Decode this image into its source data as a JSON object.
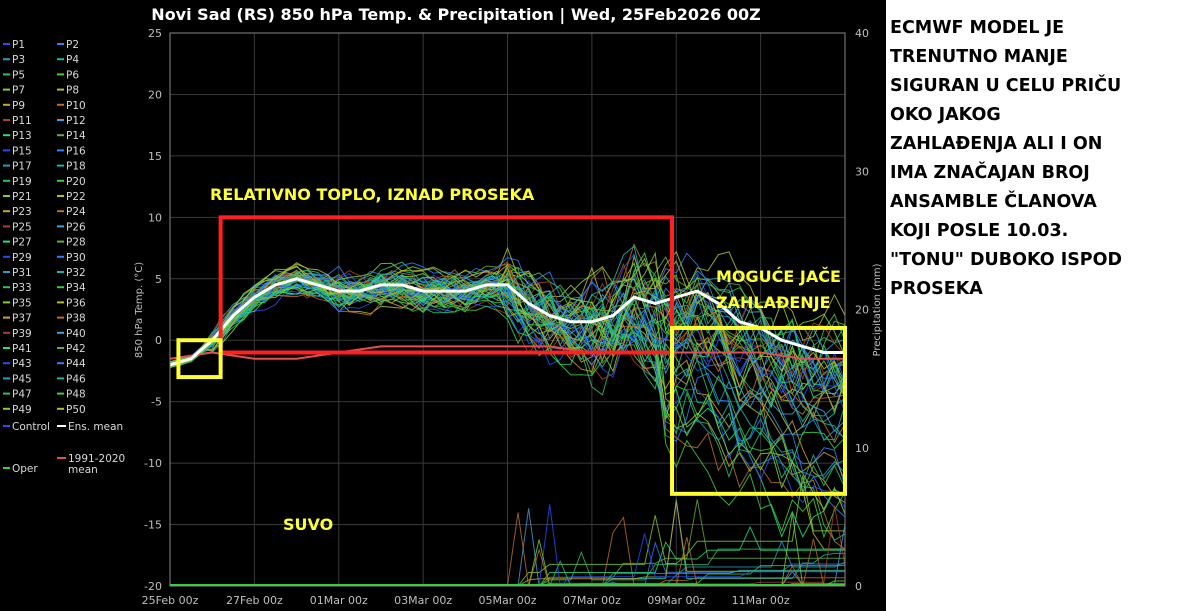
{
  "chart_data": {
    "type": "line",
    "title": "Novi Sad  (RS)  850 hPa Temp. & Precipitation | Wed, 25Feb2026 00Z",
    "ylabel": "850 hPa Temp. (°C)",
    "y2label": "Precipitation (mm)",
    "ylim": [
      -20,
      25
    ],
    "y2lim": [
      0,
      40
    ],
    "yticks": [
      "25",
      "20",
      "15",
      "10",
      "5",
      "0",
      "-5",
      "-10",
      "-15",
      "-20"
    ],
    "y2ticks": [
      "40",
      "30",
      "20",
      "10",
      "0"
    ],
    "x_tick_labels": [
      "25Feb 00z",
      "27Feb 00z",
      "01Mar 00z",
      "03Mar 00z",
      "05Mar 00z",
      "07Mar 00z",
      "09Mar 00z",
      "11Mar 00z"
    ],
    "x_days": [
      0,
      16
    ],
    "grid": true,
    "legend_position": "left",
    "legend_members": [
      "P1",
      "P2",
      "P3",
      "P4",
      "P5",
      "P6",
      "P7",
      "P8",
      "P9",
      "P10",
      "P11",
      "P12",
      "P13",
      "P14",
      "P15",
      "P16",
      "P17",
      "P18",
      "P19",
      "P20",
      "P21",
      "P22",
      "P23",
      "P24",
      "P25",
      "P26",
      "P27",
      "P28",
      "P29",
      "P30",
      "P31",
      "P32",
      "P33",
      "P34",
      "P35",
      "P36",
      "P37",
      "P38",
      "P39",
      "P40",
      "P41",
      "P42",
      "P43",
      "P44",
      "P45",
      "P46",
      "P47",
      "P48",
      "P49",
      "P50"
    ],
    "legend_extra": {
      "control": "Control",
      "ens_mean": "Ens. mean",
      "climate": "1991-2020",
      "climate_2": "mean",
      "oper": "Oper"
    },
    "member_colors": [
      "#1f4fff",
      "#2f7fff",
      "#1fa0c8",
      "#19b8a0",
      "#2fc060",
      "#3ad03a",
      "#7fd030",
      "#b0c030",
      "#d0a030",
      "#c07020",
      "#b04020",
      "#40a0e0",
      "#20e080",
      "#60b040"
    ],
    "ens_mean": {
      "x": [
        0,
        0.5,
        1,
        1.5,
        2,
        2.5,
        3,
        3.5,
        4,
        4.5,
        5,
        5.5,
        6,
        6.5,
        7,
        7.5,
        8,
        8.5,
        9,
        9.5,
        10,
        10.5,
        11,
        11.5,
        12,
        12.5,
        13,
        13.5,
        14,
        14.5,
        15,
        15.5,
        16
      ],
      "y": [
        -2,
        -1.5,
        0,
        2,
        3.5,
        4.5,
        5,
        4.5,
        4,
        4,
        4.5,
        4.5,
        4,
        4,
        4,
        4.5,
        4.5,
        3,
        2,
        1.5,
        1.5,
        2,
        3.5,
        3,
        3.5,
        4,
        3,
        1.5,
        1,
        0,
        -0.5,
        -1,
        -1
      ]
    },
    "climate_mean": {
      "x": [
        0,
        1,
        2,
        3,
        4,
        5,
        6,
        7,
        8,
        9,
        10,
        11,
        12,
        13,
        14,
        15,
        16
      ],
      "y": [
        -1.5,
        -1,
        -1.5,
        -1.5,
        -1,
        -0.5,
        -0.5,
        -0.5,
        -0.5,
        -0.5,
        -1,
        -1,
        -1,
        -1,
        -1,
        -1.5,
        -1.5
      ]
    },
    "annotations": {
      "warm_box": {
        "x": [
          1.2,
          11.9
        ],
        "y": [
          -1,
          10
        ],
        "label": "RELATIVNO TOPLO, IZNAD PROSEKA"
      },
      "cold_box": {
        "x": [
          11.9,
          16
        ],
        "y": [
          -12.5,
          1
        ],
        "label_1": "MOGUĆE JAČE",
        "label_2": "ZAHLAĐENJE"
      },
      "start_box": {
        "x": [
          0.2,
          1.2
        ],
        "y": [
          -3,
          0
        ]
      },
      "dry_label": "SUVO"
    }
  },
  "side_note": {
    "lines": [
      "ECMWF MODEL JE",
      "TRENUTNO MANJE",
      "SIGURAN U CELU PRIČU",
      "OKO JAKOG",
      "ZAHLAĐENJA ALI I ON",
      "IMA ZNAČAJAN BROJ",
      "ANSAMBLE ČLANOVA",
      "KOJI POSLE 10.03.",
      "\"TONU\" DUBOKO ISPOD",
      "PROSEKA"
    ]
  }
}
